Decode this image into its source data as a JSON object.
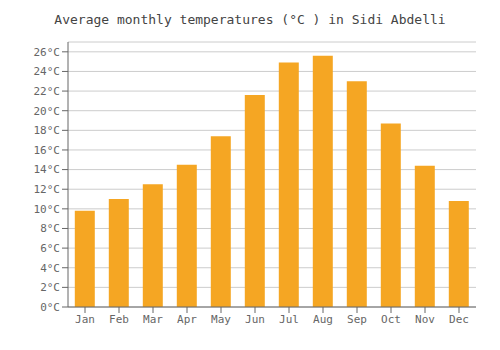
{
  "chart_data": {
    "type": "bar",
    "title": "Average monthly temperatures (°C ) in Sidi Abdelli",
    "categories": [
      "Jan",
      "Feb",
      "Mar",
      "Apr",
      "May",
      "Jun",
      "Jul",
      "Aug",
      "Sep",
      "Oct",
      "Nov",
      "Dec"
    ],
    "values": [
      9.8,
      11.0,
      12.5,
      14.5,
      17.4,
      21.6,
      24.9,
      25.6,
      23.0,
      18.7,
      14.4,
      10.8
    ],
    "color": "#F5A623",
    "ylim": [
      0,
      27
    ],
    "yticks": [
      {
        "value": 0,
        "label": "0°C"
      },
      {
        "value": 2,
        "label": "2°C"
      },
      {
        "value": 4,
        "label": "4°C"
      },
      {
        "value": 6,
        "label": "6°C"
      },
      {
        "value": 8,
        "label": "8°C"
      },
      {
        "value": 10,
        "label": "10°C"
      },
      {
        "value": 12,
        "label": "12°C"
      },
      {
        "value": 14,
        "label": "14°C"
      },
      {
        "value": 16,
        "label": "16°C"
      },
      {
        "value": 18,
        "label": "18°C"
      },
      {
        "value": 20,
        "label": "20°C"
      },
      {
        "value": 22,
        "label": "22°C"
      },
      {
        "value": 24,
        "label": "24°C"
      },
      {
        "value": 26,
        "label": "26°C"
      }
    ],
    "grid": true
  }
}
